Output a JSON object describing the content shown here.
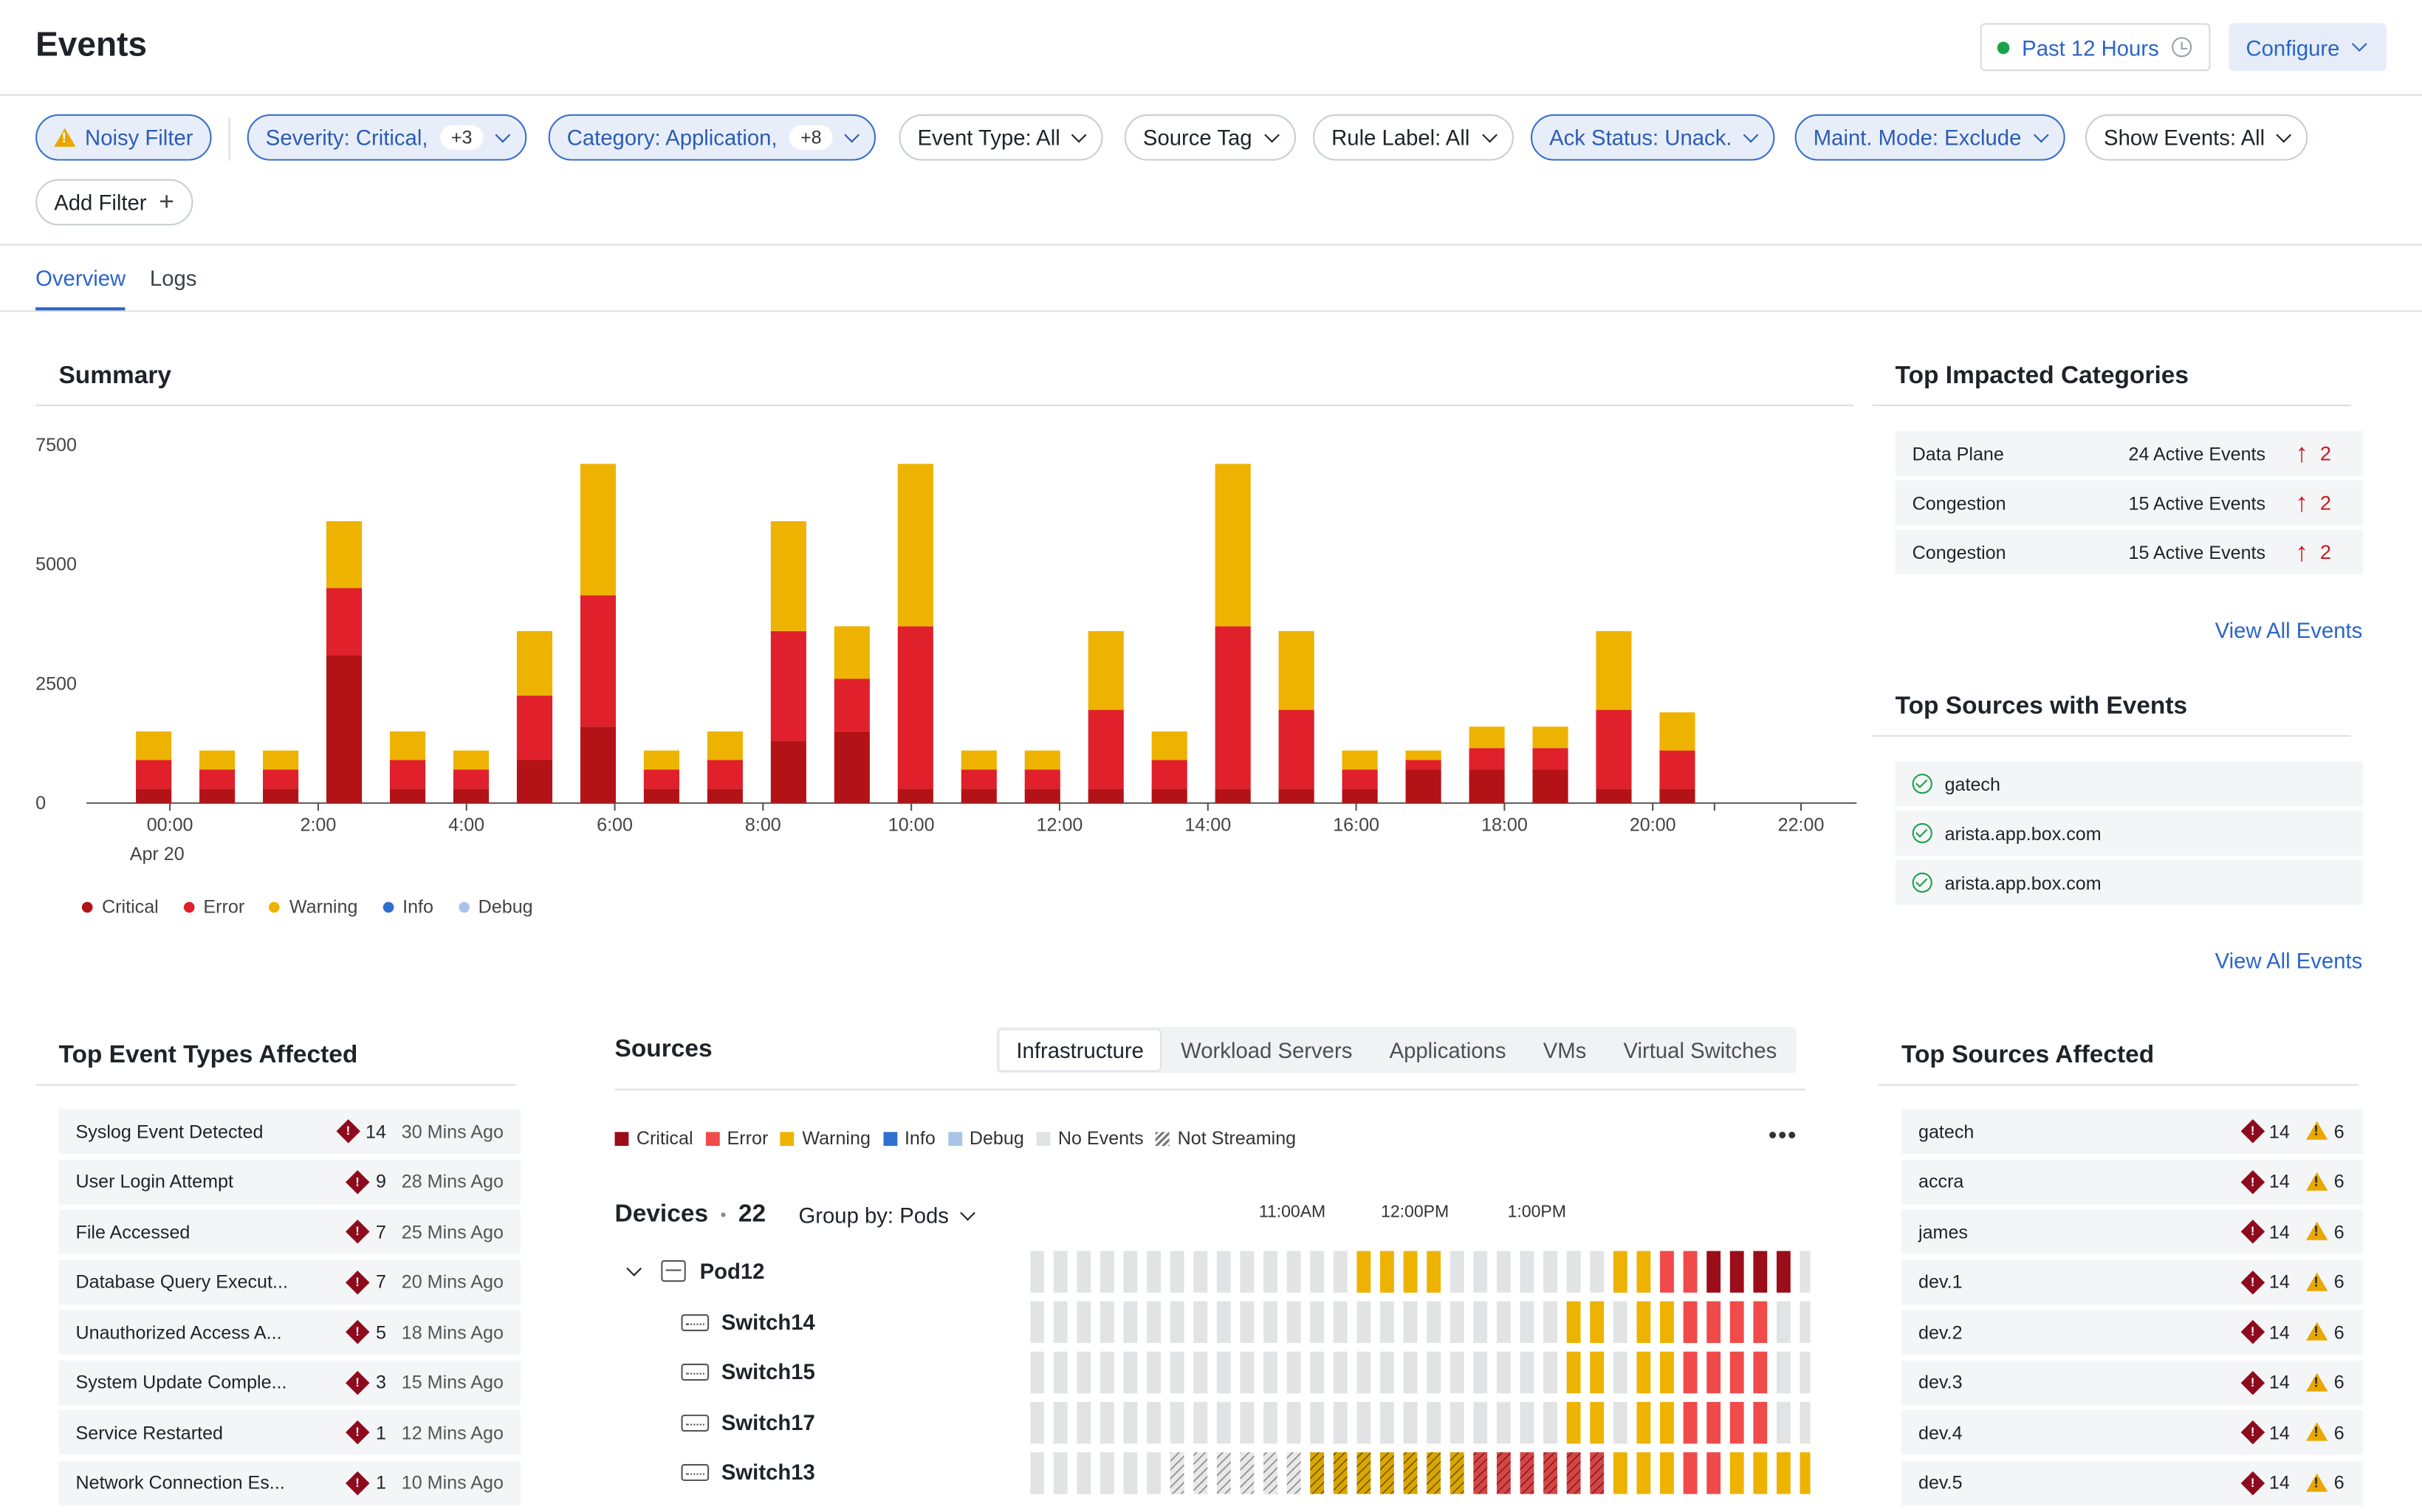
{
  "header": {
    "title": "Events",
    "time_range": "Past 12 Hours",
    "configure": "Configure"
  },
  "filters": {
    "noisy": "Noisy Filter",
    "severity": {
      "label": "Severity: Critical,",
      "count": "+3"
    },
    "category": {
      "label": "Category: Application,",
      "count": "+8"
    },
    "event_type": "Event Type: All",
    "source_tag": "Source Tag",
    "rule_label": "Rule Label: All",
    "ack_status": "Ack Status: Unack.",
    "maint_mode": "Maint. Mode: Exclude",
    "show_events": "Show Events: All",
    "add_filter": "Add Filter"
  },
  "tabs": [
    "Overview",
    "Logs"
  ],
  "summary": {
    "title": "Summary",
    "date_label": "Apr 20"
  },
  "chart_data": {
    "type": "bar",
    "stacked": true,
    "title": "Summary",
    "ylim": [
      0,
      7500
    ],
    "yticks": [
      "7500",
      "5000",
      "2500",
      "0"
    ],
    "xticks": [
      "00:00",
      "2:00",
      "4:00",
      "6:00",
      "8:00",
      "10:00",
      "12:00",
      "14:00",
      "16:00",
      "18:00",
      "20:00",
      "22:00"
    ],
    "legend": [
      "Critical",
      "Error",
      "Warning",
      "Info",
      "Debug"
    ],
    "colors": {
      "Critical": "#b31217",
      "Error": "#e0202a",
      "Warning": "#edb300",
      "Info": "#2f6fd0",
      "Debug": "#a9c4e8"
    },
    "series": [
      {
        "name": "Critical",
        "values": [
          300,
          300,
          300,
          3100,
          300,
          300,
          900,
          1600,
          300,
          300,
          1300,
          1500,
          300,
          300,
          300,
          300,
          300,
          300,
          300,
          300,
          700,
          700,
          700,
          300,
          300
        ]
      },
      {
        "name": "Error",
        "values": [
          600,
          400,
          400,
          1400,
          600,
          400,
          1350,
          2750,
          400,
          600,
          2300,
          1100,
          3400,
          400,
          400,
          1650,
          600,
          3400,
          1650,
          400,
          200,
          450,
          450,
          1650,
          800
        ]
      },
      {
        "name": "Warning",
        "values": [
          600,
          400,
          400,
          1400,
          600,
          400,
          1350,
          2750,
          400,
          600,
          2300,
          1100,
          3400,
          400,
          400,
          1650,
          600,
          3400,
          1650,
          400,
          200,
          450,
          450,
          1650,
          800
        ]
      },
      {
        "name": "Info",
        "values": [
          0,
          0,
          0,
          0,
          0,
          0,
          0,
          0,
          0,
          0,
          0,
          0,
          0,
          0,
          0,
          0,
          0,
          0,
          0,
          0,
          0,
          0,
          0,
          0,
          0
        ]
      },
      {
        "name": "Debug",
        "values": [
          0,
          0,
          0,
          0,
          0,
          0,
          0,
          0,
          0,
          0,
          0,
          0,
          0,
          0,
          0,
          0,
          0,
          0,
          0,
          0,
          0,
          0,
          0,
          0,
          0
        ]
      }
    ]
  },
  "top_categories": {
    "title": "Top Impacted Categories",
    "rows": [
      {
        "name": "Data Plane",
        "events": "24 Active Events",
        "delta": "2"
      },
      {
        "name": "Congestion",
        "events": "15 Active Events",
        "delta": "2"
      },
      {
        "name": "Congestion",
        "events": "15 Active Events",
        "delta": "2"
      }
    ],
    "link": "View All Events"
  },
  "top_sources": {
    "title": "Top Sources with Events",
    "rows": [
      "gatech",
      "arista.app.box.com",
      "arista.app.box.com"
    ],
    "link": "View All Events"
  },
  "event_types": {
    "title": "Top Event Types Affected",
    "rows": [
      {
        "name": "Syslog Event Detected",
        "count": "14",
        "time": "30 Mins Ago"
      },
      {
        "name": "User Login Attempt",
        "count": "9",
        "time": "28 Mins Ago"
      },
      {
        "name": "File Accessed",
        "count": "7",
        "time": "25 Mins Ago"
      },
      {
        "name": "Database Query Execut...",
        "count": "7",
        "time": "20 Mins Ago"
      },
      {
        "name": "Unauthorized Access A...",
        "count": "5",
        "time": "18 Mins Ago"
      },
      {
        "name": "System Update Comple...",
        "count": "3",
        "time": "15 Mins Ago"
      },
      {
        "name": "Service Restarted",
        "count": "1",
        "time": "12 Mins Ago"
      },
      {
        "name": "Network Connection Es...",
        "count": "1",
        "time": "10 Mins Ago"
      }
    ]
  },
  "sources": {
    "title": "Sources",
    "tabs": [
      "Infrastructure",
      "Workload Servers",
      "Applications",
      "VMs",
      "Virtual Switches"
    ],
    "legend": [
      "Critical",
      "Error",
      "Warning",
      "Info",
      "Debug",
      "No Events",
      "Not Streaming"
    ],
    "more": "•••",
    "devices_label": "Devices",
    "devices_count": "22",
    "group_by": "Group by: Pods",
    "times": [
      "11:00AM",
      "12:00PM",
      "1:00PM"
    ],
    "pod": "Pod12",
    "switches": [
      "Switch14",
      "Switch15",
      "Switch17",
      "Switch13"
    ],
    "heat_rows": [
      "nnnnnnnnnnnnnnwwwwnnnnnnnwweeCCCC",
      "nnnnnnnnnnnnnnnnnnnnnnnwwnwweeee",
      "nnnnnnnnnnnnnnnnnnnnnnnwwnwweeee",
      "nnnnnnnnnnnnnnnnnnnnnnnwwnwweeee",
      "nnnnnnssssssxxxxxxxzzzzzzwwweewwww"
    ]
  },
  "top_sources_affected": {
    "title": "Top Sources Affected",
    "rows": [
      {
        "name": "gatech",
        "crit": "14",
        "warn": "6"
      },
      {
        "name": "accra",
        "crit": "14",
        "warn": "6"
      },
      {
        "name": "james",
        "crit": "14",
        "warn": "6"
      },
      {
        "name": "dev.1",
        "crit": "14",
        "warn": "6"
      },
      {
        "name": "dev.2",
        "crit": "14",
        "warn": "6"
      },
      {
        "name": "dev.3",
        "crit": "14",
        "warn": "6"
      },
      {
        "name": "dev.4",
        "crit": "14",
        "warn": "6"
      },
      {
        "name": "dev.5",
        "crit": "14",
        "warn": "6"
      }
    ]
  }
}
